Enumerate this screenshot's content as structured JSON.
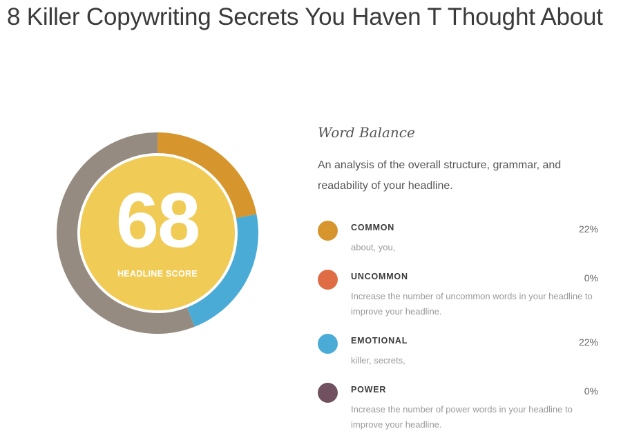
{
  "headline": "8 Killer Copywriting Secrets You Haven T Thought About",
  "score": {
    "value": "68",
    "label": "HEADLINE SCORE",
    "inner_color": "#f0cb55",
    "remainder_color": "#958b81"
  },
  "word_balance": {
    "title": "Word Balance",
    "description": "An analysis of the overall structure, grammar, and readability of your headline.",
    "items": [
      {
        "label": "COMMON",
        "percent": "22%",
        "value": 22,
        "detail": "about, you,",
        "color": "#d6962d"
      },
      {
        "label": "UNCOMMON",
        "percent": "0%",
        "value": 0,
        "detail": "Increase the number of uncommon words in your headline to improve your headline.",
        "color": "#e06c45"
      },
      {
        "label": "EMOTIONAL",
        "percent": "22%",
        "value": 22,
        "detail": "killer, secrets,",
        "color": "#4aabd6"
      },
      {
        "label": "POWER",
        "percent": "0%",
        "value": 0,
        "detail": "Increase the number of power words in your headline to improve your headline.",
        "color": "#71515f"
      }
    ]
  }
}
